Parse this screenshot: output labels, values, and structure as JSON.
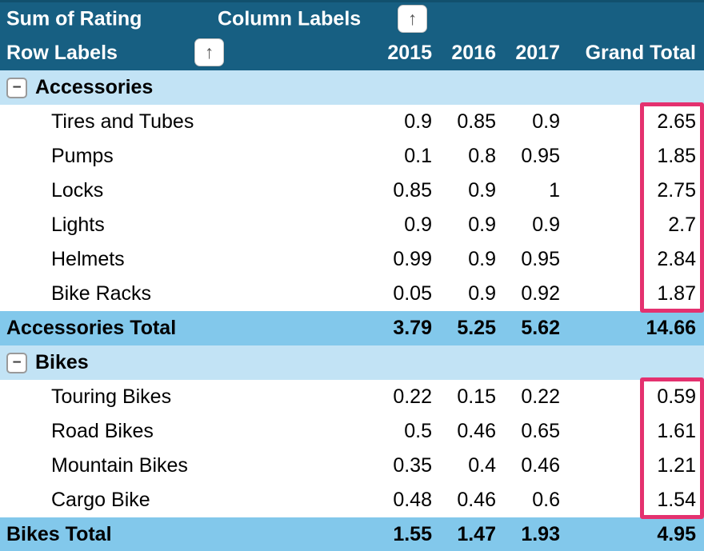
{
  "header": {
    "measure_label": "Sum of Rating",
    "column_labels_label": "Column Labels",
    "row_labels_label": "Row Labels",
    "year_columns": [
      "2015",
      "2016",
      "2017"
    ],
    "grand_total_label": "Grand Total"
  },
  "icons": {
    "column_filter": "↑",
    "row_filter": "↑",
    "collapse": "−"
  },
  "colors": {
    "header_bg": "#175F82",
    "header_top_edge": "#11506D",
    "header_text": "#FFFFFF",
    "group_row_bg": "#C2E3F5",
    "total_row_bg": "#82C8EB",
    "body_text": "#000000",
    "highlight_border": "#E4316F"
  },
  "table": {
    "groups": [
      {
        "name": "Accessories",
        "rows": [
          {
            "label": "Tires and Tubes",
            "values": [
              "0.9",
              "0.85",
              "0.9"
            ],
            "grand_total": "2.65"
          },
          {
            "label": "Pumps",
            "values": [
              "0.1",
              "0.8",
              "0.95"
            ],
            "grand_total": "1.85"
          },
          {
            "label": "Locks",
            "values": [
              "0.85",
              "0.9",
              "1"
            ],
            "grand_total": "2.75"
          },
          {
            "label": "Lights",
            "values": [
              "0.9",
              "0.9",
              "0.9"
            ],
            "grand_total": "2.7"
          },
          {
            "label": "Helmets",
            "values": [
              "0.99",
              "0.9",
              "0.95"
            ],
            "grand_total": "2.84"
          },
          {
            "label": "Bike Racks",
            "values": [
              "0.05",
              "0.9",
              "0.92"
            ],
            "grand_total": "1.87"
          }
        ],
        "total": {
          "label": "Accessories Total",
          "values": [
            "3.79",
            "5.25",
            "5.62"
          ],
          "grand_total": "14.66"
        }
      },
      {
        "name": "Bikes",
        "rows": [
          {
            "label": "Touring Bikes",
            "values": [
              "0.22",
              "0.15",
              "0.22"
            ],
            "grand_total": "0.59"
          },
          {
            "label": "Road Bikes",
            "values": [
              "0.5",
              "0.46",
              "0.65"
            ],
            "grand_total": "1.61"
          },
          {
            "label": "Mountain Bikes",
            "values": [
              "0.35",
              "0.4",
              "0.46"
            ],
            "grand_total": "1.21"
          },
          {
            "label": "Cargo Bike",
            "values": [
              "0.48",
              "0.46",
              "0.6"
            ],
            "grand_total": "1.54"
          }
        ],
        "total": {
          "label": "Bikes Total",
          "values": [
            "1.55",
            "1.47",
            "1.93"
          ],
          "grand_total": "4.95"
        }
      }
    ]
  }
}
